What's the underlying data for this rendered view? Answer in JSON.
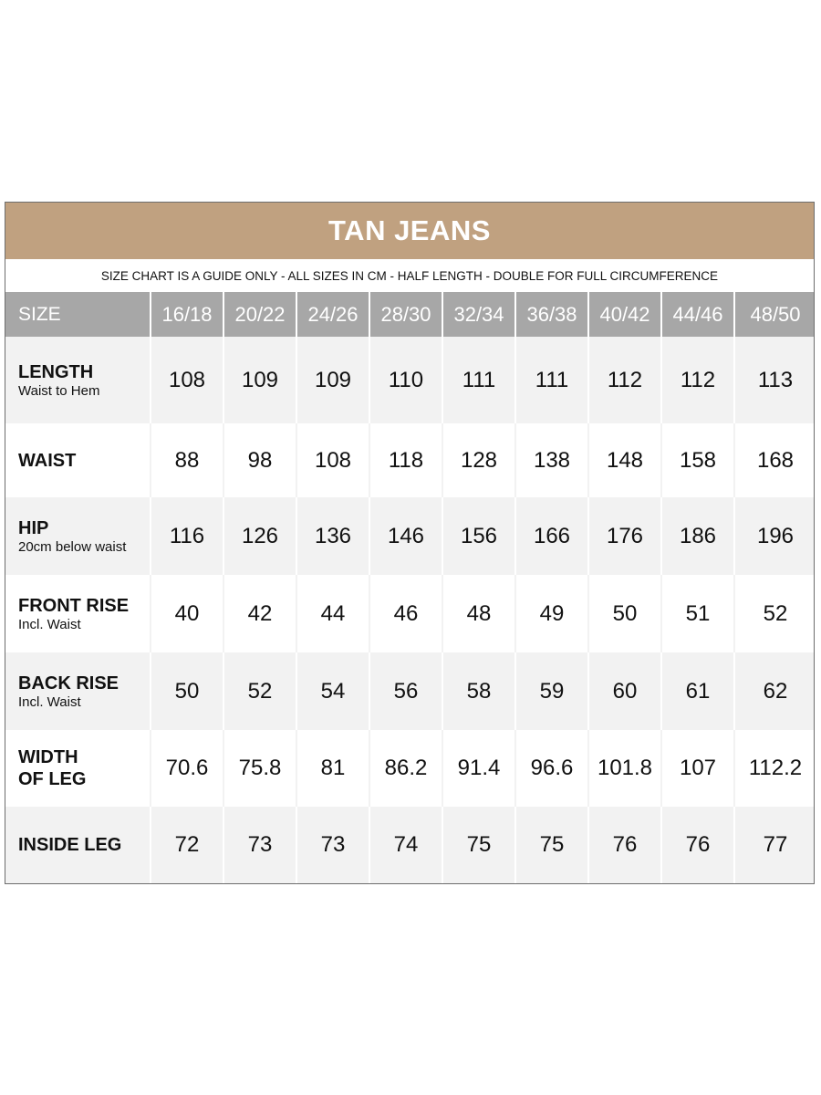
{
  "title": "TAN JEANS",
  "subtitle": "SIZE CHART IS A GUIDE ONLY - ALL SIZES IN CM - HALF LENGTH - DOUBLE FOR FULL CIRCUMFERENCE",
  "colors": {
    "title_bar": "#c0a180",
    "header_bar": "#a7a7a7",
    "row_alt": "#f2f2f2"
  },
  "table": {
    "size_header": "SIZE",
    "sizes": [
      "16/18",
      "20/22",
      "24/26",
      "28/30",
      "32/34",
      "36/38",
      "40/42",
      "44/46",
      "48/50"
    ],
    "rows": [
      {
        "label": "LENGTH",
        "sub": "Waist to Hem",
        "values": [
          "108",
          "109",
          "109",
          "110",
          "111",
          "111",
          "112",
          "112",
          "113"
        ]
      },
      {
        "label": "WAIST",
        "sub": "",
        "values": [
          "88",
          "98",
          "108",
          "118",
          "128",
          "138",
          "148",
          "158",
          "168"
        ]
      },
      {
        "label": "HIP",
        "sub": "20cm below waist",
        "values": [
          "116",
          "126",
          "136",
          "146",
          "156",
          "166",
          "176",
          "186",
          "196"
        ]
      },
      {
        "label": "FRONT RISE",
        "sub": "Incl. Waist",
        "values": [
          "40",
          "42",
          "44",
          "46",
          "48",
          "49",
          "50",
          "51",
          "52"
        ]
      },
      {
        "label": "BACK RISE",
        "sub": "Incl. Waist",
        "values": [
          "50",
          "52",
          "54",
          "56",
          "58",
          "59",
          "60",
          "61",
          "62"
        ]
      },
      {
        "label": "WIDTH",
        "label2": "OF LEG",
        "sub": "",
        "values": [
          "70.6",
          "75.8",
          "81",
          "86.2",
          "91.4",
          "96.6",
          "101.8",
          "107",
          "112.2"
        ]
      },
      {
        "label": "INSIDE LEG",
        "sub": "",
        "values": [
          "72",
          "73",
          "73",
          "74",
          "75",
          "75",
          "76",
          "76",
          "77"
        ]
      }
    ]
  }
}
